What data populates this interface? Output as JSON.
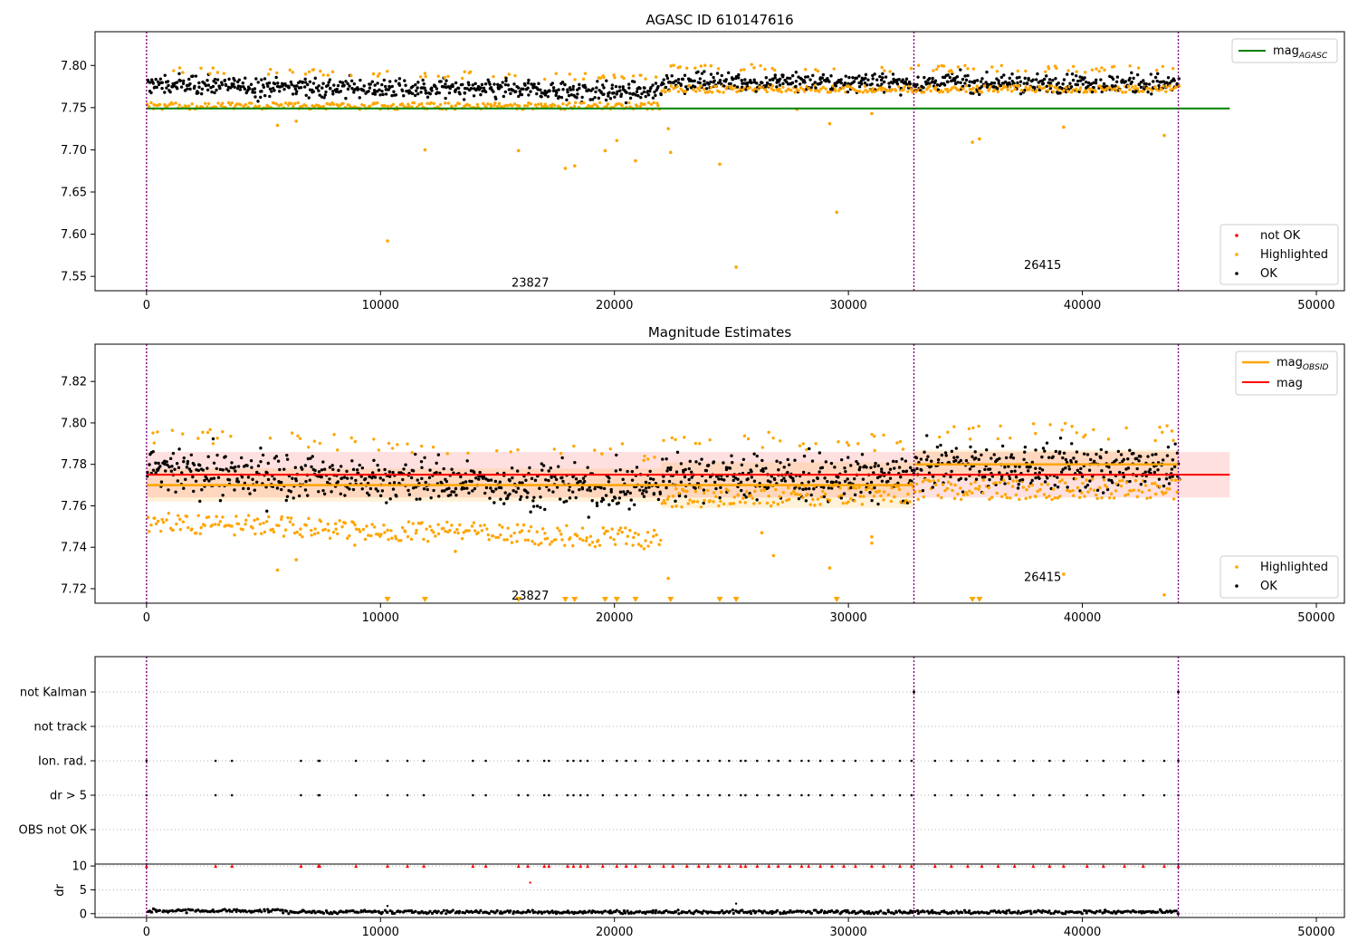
{
  "chart_data": [
    {
      "type": "scatter",
      "title": "AGASC ID 610147616",
      "xlim": [
        -2200,
        51200
      ],
      "ylim": [
        7.533,
        7.84
      ],
      "xticks": [
        0,
        10000,
        20000,
        30000,
        40000,
        50000
      ],
      "yticks": [
        7.55,
        7.6,
        7.65,
        7.7,
        7.75,
        7.8
      ],
      "xtick_labels": [
        "0",
        "10000",
        "20000",
        "30000",
        "40000",
        "50000"
      ],
      "ytick_labels": [
        "7.55",
        "7.60",
        "7.65",
        "7.70",
        "7.75",
        "7.80"
      ],
      "vlines": [
        0,
        32800,
        44100
      ],
      "hline": {
        "name": "magAGASC",
        "y": 7.749,
        "x": [
          0,
          46300
        ],
        "color": "#008000"
      },
      "series": [
        {
          "name": "not OK",
          "color": "#ff0000"
        },
        {
          "name": "Highlighted",
          "color": "#ffa500"
        },
        {
          "name": "OK",
          "color": "#000000"
        }
      ],
      "segments": [
        {
          "x": [
            0,
            22000
          ],
          "ok_mean": 7.777,
          "ok_end": 7.768,
          "hl_low": 7.752
        },
        {
          "x": [
            22000,
            32800
          ],
          "ok_mean": 7.781,
          "ok_end": 7.779,
          "hl_low": 7.772
        },
        {
          "x": [
            32800,
            44100
          ],
          "ok_mean": 7.779,
          "ok_end": 7.778,
          "hl_low": 7.772
        }
      ],
      "outliers": [
        [
          5600,
          7.729
        ],
        [
          6400,
          7.734
        ],
        [
          10300,
          7.592
        ],
        [
          11900,
          7.7
        ],
        [
          15900,
          7.699
        ],
        [
          17900,
          7.678
        ],
        [
          18300,
          7.681
        ],
        [
          19600,
          7.699
        ],
        [
          20100,
          7.711
        ],
        [
          20900,
          7.687
        ],
        [
          22300,
          7.725
        ],
        [
          22400,
          7.697
        ],
        [
          24500,
          7.683
        ],
        [
          25200,
          7.561
        ],
        [
          27800,
          7.748
        ],
        [
          29200,
          7.731
        ],
        [
          29500,
          7.626
        ],
        [
          31000,
          7.743
        ],
        [
          35300,
          7.709
        ],
        [
          35600,
          7.713
        ],
        [
          39200,
          7.727
        ],
        [
          43500,
          7.717
        ]
      ],
      "annotations": [
        {
          "text": "23827",
          "x": 16400,
          "y": 7.543
        },
        {
          "text": "26415",
          "x": 38300,
          "y": 7.564
        }
      ],
      "legend_upper": [
        "magAGASC"
      ],
      "legend_lower": [
        "not OK",
        "Highlighted",
        "OK"
      ]
    },
    {
      "type": "scatter",
      "title": "Magnitude Estimates",
      "xlim": [
        -2200,
        51200
      ],
      "ylim": [
        7.713,
        7.838
      ],
      "xticks": [
        0,
        10000,
        20000,
        30000,
        40000,
        50000
      ],
      "yticks": [
        7.72,
        7.74,
        7.76,
        7.78,
        7.8,
        7.82
      ],
      "xtick_labels": [
        "0",
        "10000",
        "20000",
        "30000",
        "40000",
        "50000"
      ],
      "ytick_labels": [
        "7.72",
        "7.74",
        "7.76",
        "7.78",
        "7.80",
        "7.82"
      ],
      "vlines": [
        0,
        32800,
        44100
      ],
      "mag": {
        "name": "mag",
        "y": 7.775,
        "band": [
          7.764,
          7.786
        ],
        "x": [
          0,
          46300
        ],
        "color": "#ff0000"
      },
      "mag_obsid": [
        {
          "x": [
            0,
            22000
          ],
          "y": 7.77,
          "band": [
            7.762,
            7.778
          ]
        },
        {
          "x": [
            22000,
            32800
          ],
          "y": 7.77,
          "band": [
            7.759,
            7.781
          ]
        },
        {
          "x": [
            32800,
            44100
          ],
          "y": 7.78,
          "band": [
            7.773,
            7.787
          ]
        }
      ],
      "segments": [
        {
          "x": [
            0,
            22000
          ],
          "ok_mean": 7.777,
          "ok_end": 7.768,
          "hl_low": 7.752,
          "hl_end": 7.744
        },
        {
          "x": [
            22000,
            32800
          ],
          "ok_mean": 7.775,
          "ok_end": 7.773,
          "hl_low": 7.764,
          "hl_end": 7.766
        },
        {
          "x": [
            32800,
            44100
          ],
          "ok_mean": 7.779,
          "ok_end": 7.778,
          "hl_low": 7.768,
          "hl_end": 7.768
        }
      ],
      "outliers": [
        [
          5600,
          7.729
        ],
        [
          6400,
          7.734
        ],
        [
          8900,
          7.741
        ],
        [
          13200,
          7.738
        ],
        [
          22300,
          7.725
        ],
        [
          26300,
          7.747
        ],
        [
          26800,
          7.736
        ],
        [
          29200,
          7.73
        ],
        [
          31000,
          7.745
        ],
        [
          31000,
          7.742
        ],
        [
          39200,
          7.727
        ],
        [
          43500,
          7.717
        ]
      ],
      "offscale_x": [
        10300,
        11900,
        15900,
        17900,
        18300,
        19600,
        20100,
        20900,
        22400,
        24500,
        25200,
        29500,
        35300,
        35600
      ],
      "annotations": [
        {
          "text": "23827",
          "x": 16400,
          "y": 7.717
        },
        {
          "text": "26415",
          "x": 38300,
          "y": 7.726
        }
      ],
      "series": [
        {
          "name": "Highlighted",
          "color": "#ffa500"
        },
        {
          "name": "OK",
          "color": "#000000"
        }
      ],
      "legend_upper": [
        "magOBSID",
        "mag"
      ],
      "legend_lower": [
        "Highlighted",
        "OK"
      ]
    },
    {
      "type": "scatter",
      "title": "",
      "xlim": [
        -2200,
        51200
      ],
      "categories": [
        "not Kalman",
        "not track",
        "Ion. rad.",
        "dr > 5",
        "OBS not OK"
      ],
      "flag_x": [
        0,
        2950,
        3650,
        6600,
        7350,
        7400,
        8950,
        10300,
        11150,
        11850,
        13950,
        14500,
        15900,
        16300,
        17000,
        17200,
        18000,
        18250,
        18550,
        18850,
        19500,
        20100,
        20500,
        20900,
        21500,
        22100,
        22500,
        23100,
        23600,
        24000,
        24500,
        24900,
        25400,
        25600,
        26100,
        26600,
        27000,
        27500,
        28000,
        28300,
        28800,
        29300,
        29800,
        30300,
        31000,
        31500,
        32200,
        32700,
        33700,
        34400,
        35100,
        35700,
        36400,
        37100,
        37900,
        38600,
        39200,
        40200,
        40900,
        41800,
        42600,
        43500,
        44100
      ],
      "kalman_x": [
        32800,
        44100
      ],
      "ylabel": "dr",
      "dr_yticks": [
        0,
        5,
        10
      ],
      "dr_ytick_labels": [
        "0",
        "5",
        "10"
      ],
      "dr_ylim": [
        -0.8,
        10.4
      ],
      "xticks": [
        0,
        10000,
        20000,
        30000,
        40000,
        50000
      ],
      "xtick_labels": [
        "0",
        "10000",
        "20000",
        "30000",
        "40000",
        "50000"
      ],
      "dr_outliers": [
        [
          10300,
          1.6
        ],
        [
          16400,
          6.5
        ],
        [
          25200,
          2.1
        ]
      ],
      "vlines": [
        0,
        32800,
        44100
      ]
    }
  ]
}
